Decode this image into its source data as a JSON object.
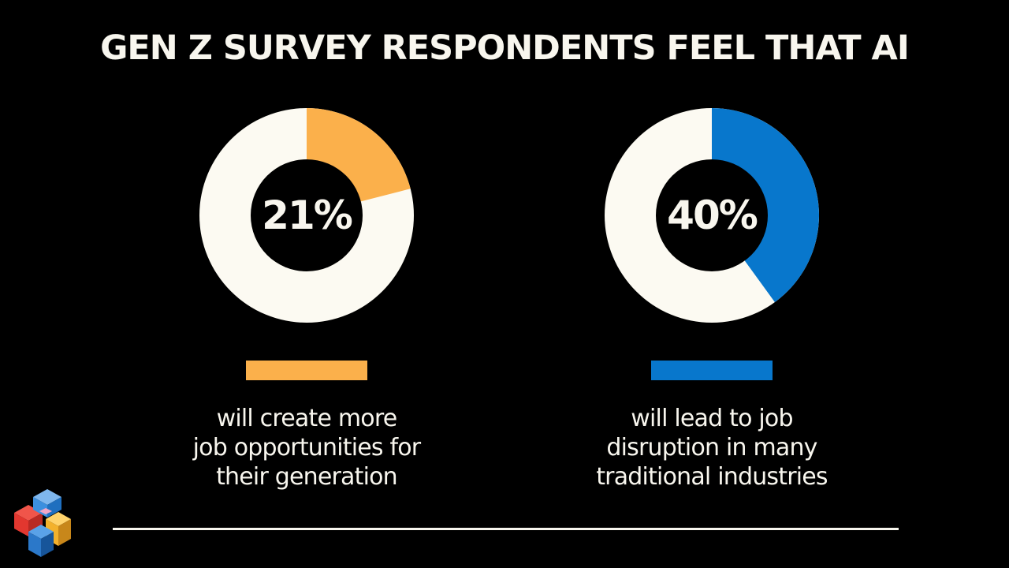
{
  "title": "GEN Z SURVEY RESPONDENTS FEEL THAT AI",
  "colors": {
    "background": "#000000",
    "text": "#f8f6ee",
    "ring_base": "#fcfaf2",
    "accent_orange": "#fbb04b",
    "accent_blue": "#0877cc"
  },
  "chart_data": [
    {
      "type": "pie",
      "style": "donut",
      "value": 21,
      "label": "21%",
      "color": "#fbb04b",
      "caption": [
        "will create more",
        "job opportunities for",
        "their generation"
      ]
    },
    {
      "type": "pie",
      "style": "donut",
      "value": 40,
      "label": "40%",
      "color": "#0877cc",
      "caption": [
        "will lead to job",
        "disruption in many",
        "traditional industries"
      ]
    }
  ],
  "logo": {
    "icon": "stacked-cubes-logo"
  }
}
